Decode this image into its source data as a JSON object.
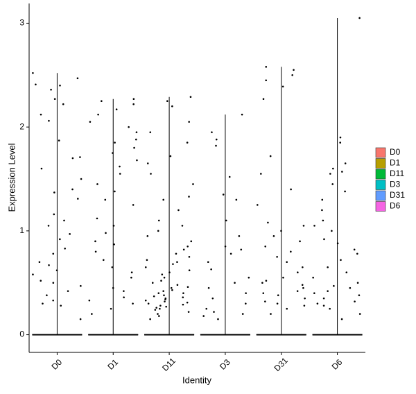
{
  "chart_data": {
    "type": "violin",
    "xlabel": "Identity",
    "ylabel": "Expression Level",
    "ylim": [
      -0.17,
      3.19
    ],
    "yticks": [
      0,
      1,
      2,
      3
    ],
    "grid": false,
    "legend": "right",
    "series": [
      {
        "name": "D0",
        "color": "#F8766D",
        "values": [
          2.52,
          2.47,
          2.41,
          2.4,
          2.36,
          2.27,
          2.22,
          2.12,
          2.06,
          1.87,
          1.71,
          1.7,
          1.6,
          1.5,
          1.4,
          1.37,
          1.31,
          1.16,
          1.1,
          1.05,
          0.97,
          0.92,
          0.83,
          0.78,
          0.7,
          0.67,
          0.62,
          0.58,
          0.52,
          0.5,
          0.47,
          0.42,
          0.38,
          0.33,
          0.3,
          0.28,
          0.15
        ]
      },
      {
        "name": "D1",
        "color": "#B79F00",
        "values": [
          2.27,
          2.25,
          2.22,
          2.17,
          2.12,
          2.05,
          2.0,
          1.95,
          1.88,
          1.85,
          1.8,
          1.75,
          1.68,
          1.62,
          1.55,
          1.45,
          1.38,
          1.3,
          1.25,
          1.12,
          1.05,
          0.98,
          0.9,
          0.87,
          0.8,
          0.72,
          0.65,
          0.6,
          0.55,
          0.45,
          0.42,
          0.36,
          0.33,
          0.3,
          0.25,
          0.2
        ]
      },
      {
        "name": "D11",
        "color": "#00BA38",
        "values": [
          2.29,
          2.25,
          2.2,
          2.05,
          1.95,
          1.85,
          1.72,
          1.65,
          1.55,
          1.45,
          1.33,
          1.3,
          1.2,
          1.1,
          1.05,
          1.0,
          0.95,
          0.9,
          0.85,
          0.82,
          0.78,
          0.75,
          0.72,
          0.7,
          0.68,
          0.65,
          0.62,
          0.6,
          0.58,
          0.55,
          0.52,
          0.5,
          0.48,
          0.46,
          0.45,
          0.43,
          0.42,
          0.4,
          0.4,
          0.38,
          0.37,
          0.36,
          0.35,
          0.34,
          0.33,
          0.32,
          0.31,
          0.3,
          0.29,
          0.28,
          0.27,
          0.26,
          0.25,
          0.24,
          0.22,
          0.2,
          0.18,
          0.15
        ]
      },
      {
        "name": "D3",
        "color": "#00BFC4",
        "values": [
          2.12,
          1.95,
          1.88,
          1.82,
          1.52,
          1.35,
          1.3,
          1.1,
          0.95,
          0.85,
          0.82,
          0.78,
          0.7,
          0.63,
          0.55,
          0.5,
          0.45,
          0.4,
          0.35,
          0.3,
          0.25,
          0.22,
          0.2,
          0.18,
          0.15
        ]
      },
      {
        "name": "D31",
        "color": "#619CFF",
        "values": [
          2.58,
          2.55,
          2.5,
          2.45,
          2.39,
          2.27,
          1.72,
          1.55,
          1.4,
          1.25,
          1.08,
          1.05,
          1.0,
          0.95,
          0.9,
          0.85,
          0.8,
          0.75,
          0.7,
          0.65,
          0.6,
          0.55,
          0.52,
          0.5,
          0.48,
          0.45,
          0.42,
          0.4,
          0.38,
          0.35,
          0.32,
          0.3,
          0.28,
          0.25,
          0.2
        ]
      },
      {
        "name": "D6",
        "color": "#F564E3",
        "values": [
          3.05,
          1.9,
          1.85,
          1.65,
          1.6,
          1.57,
          1.55,
          1.45,
          1.38,
          1.3,
          1.2,
          1.1,
          1.05,
          1.0,
          0.92,
          0.88,
          0.82,
          0.78,
          0.72,
          0.65,
          0.6,
          0.55,
          0.5,
          0.47,
          0.45,
          0.42,
          0.4,
          0.38,
          0.35,
          0.32,
          0.3,
          0.28,
          0.25,
          0.2,
          0.15
        ]
      }
    ]
  }
}
